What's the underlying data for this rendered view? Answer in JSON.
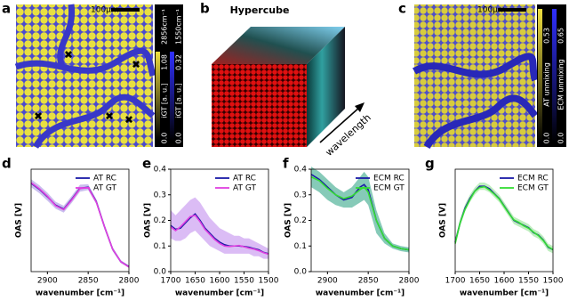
{
  "panel_letters": [
    "a",
    "b",
    "c",
    "d",
    "e",
    "f",
    "g"
  ],
  "panel_a": {
    "scale_bar": "100μm",
    "colorbars": [
      {
        "top": "2856cm⁻¹",
        "max": "1.08",
        "label": "iGT [a. u.]",
        "min": "0.0"
      },
      {
        "top": "1550cm⁻¹",
        "max": "0.32",
        "label": "iGT [a. u.]",
        "min": "0.0"
      }
    ]
  },
  "panel_b": {
    "title": "Hypercube",
    "axis_label": "wavelength"
  },
  "panel_c": {
    "scale_bar": "100μm",
    "colorbars": [
      {
        "max": "0.53",
        "label": "AT unmixing",
        "min": "0.0"
      },
      {
        "max": "0.65",
        "label": "ECM unmixing",
        "min": "0.0"
      }
    ]
  },
  "chart_data": [
    {
      "type": "line",
      "xlabel": "wavenumber [cm⁻¹]",
      "ylabel": "OAS [V]",
      "x": [
        2920,
        2910,
        2900,
        2890,
        2880,
        2870,
        2860,
        2850,
        2840,
        2830,
        2820,
        2810,
        2800
      ],
      "xlim": [
        2920,
        2800
      ],
      "xticks": [
        2900,
        2850,
        2800
      ],
      "ylim": [
        0.05,
        2.1
      ],
      "legend": "upper right",
      "band": {
        "color": "#b8a8e8",
        "upper": [
          1.9,
          1.78,
          1.63,
          1.45,
          1.37,
          1.57,
          1.79,
          1.8,
          1.5,
          1.0,
          0.54,
          0.28,
          0.17
        ],
        "lower": [
          1.74,
          1.62,
          1.47,
          1.31,
          1.23,
          1.43,
          1.65,
          1.68,
          1.4,
          0.9,
          0.46,
          0.22,
          0.13
        ]
      },
      "series": [
        {
          "name": "AT RC",
          "color": "#1a1aa6",
          "values": [
            1.82,
            1.7,
            1.55,
            1.38,
            1.3,
            1.5,
            1.72,
            1.74,
            1.45,
            0.95,
            0.5,
            0.25,
            0.15
          ]
        },
        {
          "name": "AT GT",
          "color": "#e040e0",
          "values": [
            1.83,
            1.71,
            1.56,
            1.37,
            1.29,
            1.49,
            1.71,
            1.73,
            1.44,
            0.95,
            0.5,
            0.25,
            0.14
          ]
        }
      ]
    },
    {
      "type": "line",
      "xlabel": "wavenumber [cm⁻¹]",
      "ylabel": "OAS [V]",
      "x": [
        1700,
        1690,
        1680,
        1670,
        1660,
        1650,
        1640,
        1630,
        1620,
        1610,
        1600,
        1590,
        1580,
        1570,
        1560,
        1550,
        1540,
        1530,
        1520,
        1510,
        1500
      ],
      "xlim": [
        1700,
        1500
      ],
      "xticks": [
        1700,
        1650,
        1600,
        1550,
        1500
      ],
      "ylim": [
        0,
        0.4
      ],
      "yticks": [
        {
          "value": 0,
          "label": "0.0"
        },
        0.1,
        0.2,
        0.3,
        0.4
      ],
      "legend": "upper right",
      "band": {
        "color": "#cfa6f2",
        "upper": [
          0.24,
          0.22,
          0.24,
          0.26,
          0.28,
          0.29,
          0.27,
          0.24,
          0.21,
          0.19,
          0.17,
          0.16,
          0.15,
          0.14,
          0.14,
          0.13,
          0.13,
          0.12,
          0.11,
          0.1,
          0.09
        ],
        "lower": [
          0.13,
          0.12,
          0.12,
          0.13,
          0.15,
          0.16,
          0.14,
          0.12,
          0.1,
          0.09,
          0.08,
          0.07,
          0.07,
          0.07,
          0.07,
          0.07,
          0.07,
          0.06,
          0.06,
          0.05,
          0.05
        ]
      },
      "series": [
        {
          "name": "AT RC",
          "color": "#1a1aa6",
          "values": [
            0.18,
            0.165,
            0.17,
            0.19,
            0.21,
            0.225,
            0.2,
            0.17,
            0.15,
            0.13,
            0.115,
            0.105,
            0.1,
            0.1,
            0.1,
            0.098,
            0.095,
            0.09,
            0.085,
            0.075,
            0.07
          ]
        },
        {
          "name": "AT GT",
          "color": "#e040e0",
          "values": [
            0.175,
            0.16,
            0.175,
            0.195,
            0.215,
            0.22,
            0.195,
            0.165,
            0.145,
            0.125,
            0.11,
            0.1,
            0.098,
            0.1,
            0.102,
            0.097,
            0.092,
            0.088,
            0.082,
            0.074,
            0.068
          ]
        }
      ]
    },
    {
      "type": "line",
      "xlabel": "wavenumber [cm⁻¹]",
      "ylabel": "OAS [V]",
      "x": [
        2920,
        2910,
        2900,
        2890,
        2880,
        2870,
        2860,
        2855,
        2850,
        2840,
        2830,
        2820,
        2810,
        2800
      ],
      "xlim": [
        2920,
        2800
      ],
      "xticks": [
        2900,
        2850,
        2800
      ],
      "ylim": [
        0,
        0.4
      ],
      "yticks": [
        {
          "value": 0,
          "label": "0.0"
        },
        0.1,
        0.2,
        0.3,
        0.4
      ],
      "legend": "upper right",
      "band": {
        "color": "#5db8a0",
        "upper": [
          0.41,
          0.39,
          0.36,
          0.33,
          0.31,
          0.33,
          0.37,
          0.39,
          0.37,
          0.24,
          0.15,
          0.11,
          0.1,
          0.095
        ],
        "lower": [
          0.33,
          0.31,
          0.28,
          0.26,
          0.25,
          0.25,
          0.27,
          0.28,
          0.26,
          0.15,
          0.11,
          0.09,
          0.08,
          0.075
        ]
      },
      "series": [
        {
          "name": "ECM RC",
          "color": "#1a1aa6",
          "values": [
            0.38,
            0.36,
            0.33,
            0.3,
            0.28,
            0.29,
            0.33,
            0.34,
            0.32,
            0.2,
            0.13,
            0.1,
            0.09,
            0.085
          ]
        },
        {
          "name": "ECM GT",
          "color": "#33dd33",
          "values": [
            0.37,
            0.355,
            0.325,
            0.3,
            0.285,
            0.295,
            0.32,
            0.33,
            0.31,
            0.2,
            0.13,
            0.1,
            0.09,
            0.085
          ]
        }
      ]
    },
    {
      "type": "line",
      "xlabel": "wavenumber [cm⁻¹]",
      "ylabel": "OAS [V]",
      "x": [
        1700,
        1690,
        1680,
        1670,
        1660,
        1650,
        1640,
        1630,
        1620,
        1610,
        1600,
        1590,
        1580,
        1570,
        1560,
        1550,
        1540,
        1530,
        1520,
        1510,
        1500
      ],
      "xlim": [
        1700,
        1500
      ],
      "xticks": [
        1700,
        1650,
        1600,
        1550,
        1500
      ],
      "ylim": [
        0.1,
        0.52
      ],
      "legend": "upper right",
      "band": {
        "color": "#a8e8a8",
        "upper": [
          0.235,
          0.315,
          0.375,
          0.415,
          0.445,
          0.465,
          0.465,
          0.455,
          0.435,
          0.415,
          0.385,
          0.355,
          0.325,
          0.315,
          0.305,
          0.295,
          0.275,
          0.265,
          0.245,
          0.215,
          0.205
        ],
        "lower": [
          0.205,
          0.285,
          0.345,
          0.385,
          0.415,
          0.435,
          0.435,
          0.425,
          0.405,
          0.385,
          0.355,
          0.325,
          0.295,
          0.285,
          0.275,
          0.265,
          0.245,
          0.235,
          0.215,
          0.185,
          0.175
        ]
      },
      "series": [
        {
          "name": "ECM RC",
          "color": "#1a1aa6",
          "values": [
            0.22,
            0.3,
            0.36,
            0.4,
            0.43,
            0.45,
            0.45,
            0.44,
            0.42,
            0.4,
            0.37,
            0.34,
            0.31,
            0.3,
            0.29,
            0.28,
            0.26,
            0.25,
            0.23,
            0.2,
            0.19
          ]
        },
        {
          "name": "ECM GT",
          "color": "#33dd33",
          "values": [
            0.215,
            0.3,
            0.355,
            0.395,
            0.43,
            0.445,
            0.448,
            0.435,
            0.418,
            0.398,
            0.368,
            0.338,
            0.312,
            0.302,
            0.288,
            0.278,
            0.262,
            0.248,
            0.228,
            0.202,
            0.19
          ]
        }
      ]
    }
  ]
}
